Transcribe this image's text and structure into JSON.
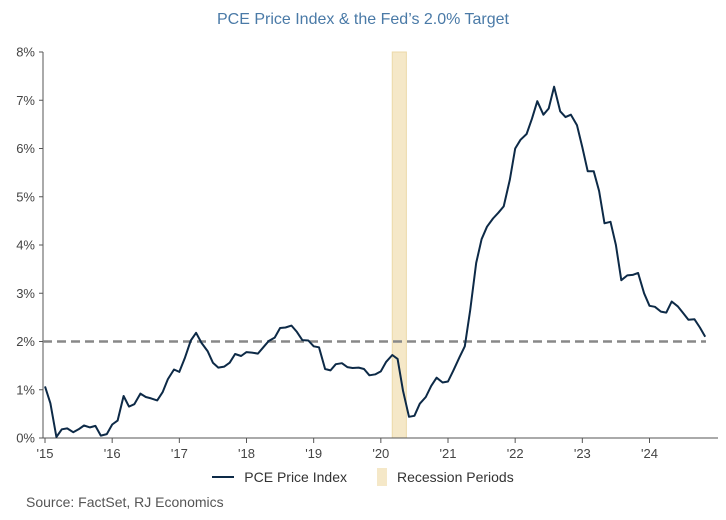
{
  "chart_data": {
    "type": "line",
    "title": "PCE Price Index & the Fed’s 2.0% Target",
    "source": "Source: FactSet, RJ Economics",
    "y_ticks": [
      "0%",
      "1%",
      "2%",
      "3%",
      "4%",
      "5%",
      "6%",
      "7%",
      "8%"
    ],
    "ylim": [
      0,
      8
    ],
    "x_ticks": [
      {
        "label": "'15",
        "x": 2015.0
      },
      {
        "label": "'16",
        "x": 2016.0
      },
      {
        "label": "'17",
        "x": 2017.0
      },
      {
        "label": "'18",
        "x": 2018.0
      },
      {
        "label": "'19",
        "x": 2019.0
      },
      {
        "label": "'20",
        "x": 2020.0
      },
      {
        "label": "'21",
        "x": 2021.0
      },
      {
        "label": "'22",
        "x": 2022.0
      },
      {
        "label": "'23",
        "x": 2023.0
      },
      {
        "label": "'24",
        "x": 2024.0
      }
    ],
    "xlim": [
      2014.97,
      2025.02
    ],
    "target_line": {
      "value": 2.0,
      "style": "dashed",
      "color": "#888888"
    },
    "recession": {
      "start": 2020.17,
      "end": 2020.38,
      "color": "#f5e8c8"
    },
    "legend": {
      "position": "bottom"
    },
    "series": [
      {
        "name": "PCE Price Index",
        "color": "#0d2a47",
        "points": [
          [
            2015.0,
            1.07
          ],
          [
            2015.08,
            0.72
          ],
          [
            2015.17,
            0.02
          ],
          [
            2015.25,
            0.18
          ],
          [
            2015.33,
            0.2
          ],
          [
            2015.42,
            0.12
          ],
          [
            2015.5,
            0.18
          ],
          [
            2015.58,
            0.26
          ],
          [
            2015.67,
            0.22
          ],
          [
            2015.75,
            0.25
          ],
          [
            2015.83,
            0.05
          ],
          [
            2015.92,
            0.08
          ],
          [
            2016.0,
            0.28
          ],
          [
            2016.08,
            0.36
          ],
          [
            2016.17,
            0.87
          ],
          [
            2016.25,
            0.65
          ],
          [
            2016.33,
            0.7
          ],
          [
            2016.42,
            0.92
          ],
          [
            2016.5,
            0.85
          ],
          [
            2016.58,
            0.82
          ],
          [
            2016.67,
            0.78
          ],
          [
            2016.75,
            0.95
          ],
          [
            2016.83,
            1.22
          ],
          [
            2016.92,
            1.42
          ],
          [
            2017.0,
            1.37
          ],
          [
            2017.08,
            1.65
          ],
          [
            2017.17,
            2.02
          ],
          [
            2017.25,
            2.18
          ],
          [
            2017.33,
            1.97
          ],
          [
            2017.42,
            1.8
          ],
          [
            2017.5,
            1.56
          ],
          [
            2017.58,
            1.46
          ],
          [
            2017.67,
            1.48
          ],
          [
            2017.75,
            1.56
          ],
          [
            2017.83,
            1.74
          ],
          [
            2017.92,
            1.7
          ],
          [
            2018.0,
            1.78
          ],
          [
            2018.08,
            1.77
          ],
          [
            2018.17,
            1.75
          ],
          [
            2018.25,
            1.88
          ],
          [
            2018.33,
            2.01
          ],
          [
            2018.42,
            2.08
          ],
          [
            2018.5,
            2.28
          ],
          [
            2018.58,
            2.29
          ],
          [
            2018.67,
            2.33
          ],
          [
            2018.75,
            2.2
          ],
          [
            2018.83,
            2.03
          ],
          [
            2018.92,
            2.02
          ],
          [
            2019.0,
            1.9
          ],
          [
            2019.08,
            1.88
          ],
          [
            2019.17,
            1.43
          ],
          [
            2019.25,
            1.4
          ],
          [
            2019.33,
            1.53
          ],
          [
            2019.42,
            1.55
          ],
          [
            2019.5,
            1.47
          ],
          [
            2019.58,
            1.45
          ],
          [
            2019.67,
            1.46
          ],
          [
            2019.75,
            1.43
          ],
          [
            2019.83,
            1.3
          ],
          [
            2019.92,
            1.32
          ],
          [
            2020.0,
            1.38
          ],
          [
            2020.08,
            1.58
          ],
          [
            2020.17,
            1.72
          ],
          [
            2020.25,
            1.64
          ],
          [
            2020.33,
            0.98
          ],
          [
            2020.42,
            0.44
          ],
          [
            2020.5,
            0.46
          ],
          [
            2020.58,
            0.71
          ],
          [
            2020.67,
            0.85
          ],
          [
            2020.75,
            1.08
          ],
          [
            2020.83,
            1.25
          ],
          [
            2020.92,
            1.15
          ],
          [
            2021.0,
            1.17
          ],
          [
            2021.08,
            1.4
          ],
          [
            2021.17,
            1.67
          ],
          [
            2021.25,
            1.9
          ],
          [
            2021.33,
            2.65
          ],
          [
            2021.42,
            3.63
          ],
          [
            2021.5,
            4.12
          ],
          [
            2021.58,
            4.38
          ],
          [
            2021.67,
            4.55
          ],
          [
            2021.75,
            4.67
          ],
          [
            2021.83,
            4.8
          ],
          [
            2021.92,
            5.35
          ],
          [
            2022.0,
            6.0
          ],
          [
            2022.08,
            6.18
          ],
          [
            2022.17,
            6.3
          ],
          [
            2022.25,
            6.62
          ],
          [
            2022.33,
            6.98
          ],
          [
            2022.42,
            6.7
          ],
          [
            2022.5,
            6.83
          ],
          [
            2022.58,
            7.28
          ],
          [
            2022.67,
            6.77
          ],
          [
            2022.75,
            6.65
          ],
          [
            2022.83,
            6.7
          ],
          [
            2022.92,
            6.48
          ],
          [
            2023.0,
            6.03
          ],
          [
            2023.08,
            5.53
          ],
          [
            2023.17,
            5.53
          ],
          [
            2023.25,
            5.12
          ],
          [
            2023.33,
            4.45
          ],
          [
            2023.42,
            4.48
          ],
          [
            2023.5,
            4.0
          ],
          [
            2023.58,
            3.27
          ],
          [
            2023.67,
            3.37
          ],
          [
            2023.75,
            3.38
          ],
          [
            2023.83,
            3.42
          ],
          [
            2023.92,
            3.0
          ],
          [
            2024.0,
            2.74
          ],
          [
            2024.08,
            2.72
          ],
          [
            2024.17,
            2.62
          ],
          [
            2024.25,
            2.6
          ],
          [
            2024.33,
            2.83
          ],
          [
            2024.42,
            2.73
          ],
          [
            2024.5,
            2.59
          ],
          [
            2024.58,
            2.45
          ],
          [
            2024.67,
            2.46
          ],
          [
            2024.75,
            2.29
          ],
          [
            2024.83,
            2.1
          ]
        ]
      }
    ]
  }
}
